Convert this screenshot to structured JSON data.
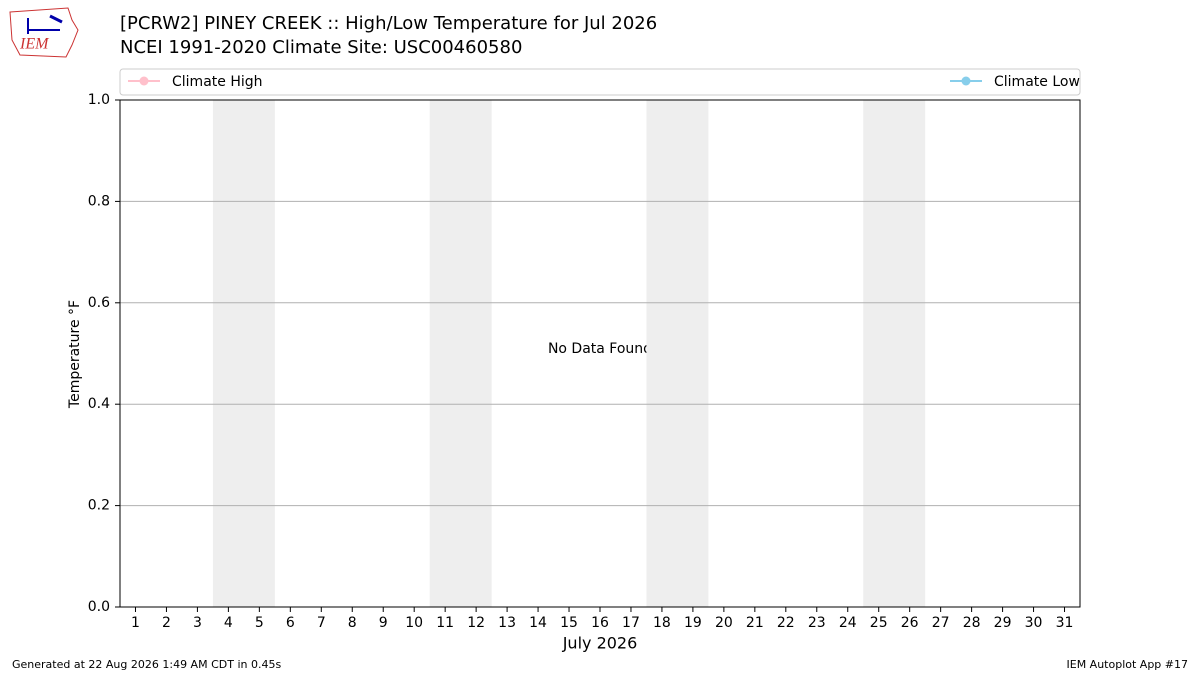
{
  "chart_data": {
    "type": "line",
    "title": "[PCRW2] PINEY CREEK :: High/Low Temperature for Jul 2026",
    "subtitle": "NCEI 1991-2020 Climate Site: USC00460580",
    "xlabel": "July 2026",
    "ylabel": "Temperature °F",
    "annotation": "No Data Found",
    "x": [],
    "series": [
      {
        "name": "Climate High",
        "color": "#ffc0cb",
        "values": []
      },
      {
        "name": "Climate Low",
        "color": "#87ceeb",
        "values": []
      }
    ],
    "xlim": [
      0.5,
      31.5
    ],
    "xticks": [
      1,
      2,
      3,
      4,
      5,
      6,
      7,
      8,
      9,
      10,
      11,
      12,
      13,
      14,
      15,
      16,
      17,
      18,
      19,
      20,
      21,
      22,
      23,
      24,
      25,
      26,
      27,
      28,
      29,
      30,
      31
    ],
    "ylim": [
      0,
      1
    ],
    "yticks": [
      {
        "value": 0,
        "label": "0.0"
      },
      0.2,
      0.4,
      0.6,
      0.8,
      {
        "value": 1,
        "label": "1.0"
      }
    ],
    "shaded_spans": [
      [
        3.5,
        5.5
      ],
      [
        10.5,
        12.5
      ],
      [
        17.5,
        19.5
      ],
      [
        24.5,
        26.5
      ]
    ],
    "shade_color": "#eeeeee",
    "grid": true,
    "legend": "top"
  },
  "logo": {
    "text": "IEM"
  },
  "footer": {
    "left": "Generated at 22 Aug 2026 1:49 AM CDT in 0.45s",
    "right": "IEM Autoplot App #17"
  }
}
